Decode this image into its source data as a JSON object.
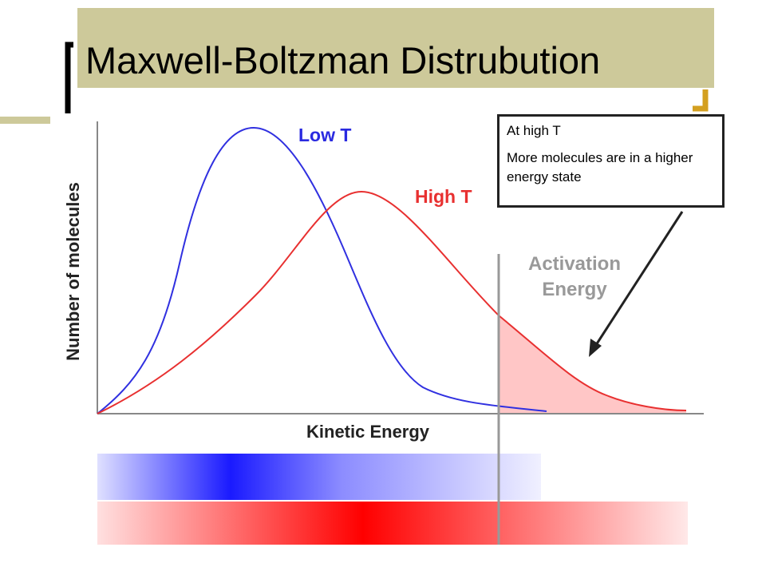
{
  "title": "Maxwell-Boltzman Distrubution",
  "diagram": {
    "y_axis_label": "Number of molecules",
    "x_axis_label": "Kinetic Energy",
    "low_t_label": "Low T",
    "high_t_label": "High T",
    "activation_label": "Activation Energy"
  },
  "callout": {
    "heading": "At high T",
    "text": "More molecules are in a higher energy state"
  }
}
